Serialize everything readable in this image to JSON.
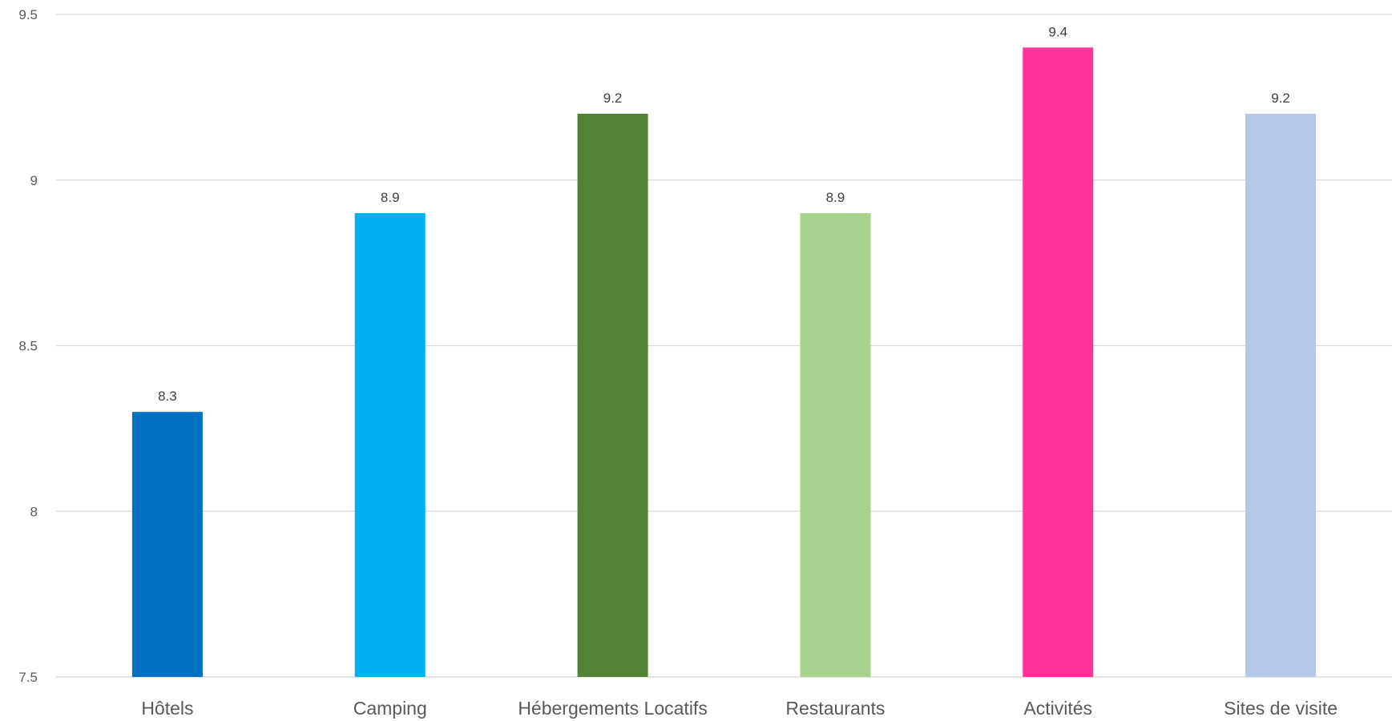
{
  "chart_data": {
    "type": "bar",
    "categories": [
      "Hôtels",
      "Camping",
      "Hébergements Locatifs",
      "Restaurants",
      "Activités",
      "Sites de visite"
    ],
    "values": [
      8.3,
      8.9,
      9.2,
      8.9,
      9.4,
      9.2
    ],
    "data_labels": [
      "8.3",
      "8.9",
      "9.2",
      "8.9",
      "9.4",
      "9.2"
    ],
    "colors": [
      "#0070c0",
      "#00b0f0",
      "#538135",
      "#a9d18e",
      "#ff3399",
      "#b4c7e7"
    ],
    "ylim": [
      7.5,
      9.5
    ],
    "yticks": [
      7.5,
      8,
      8.5,
      9,
      9.5
    ],
    "ytick_labels": [
      "7.5",
      "8",
      "8.5",
      "9",
      "9.5"
    ],
    "grid": true,
    "legend": "none",
    "title": "",
    "xlabel": "",
    "ylabel": ""
  }
}
